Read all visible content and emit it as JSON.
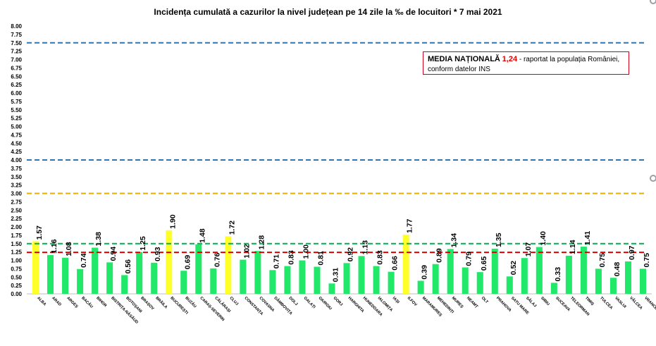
{
  "chart_data": {
    "type": "bar",
    "title": "Incidența cumulată a cazurilor la nivel județean pe 14 zile la ‰ de locuitori *   7 mai 2021",
    "xlabel": "",
    "ylabel": "",
    "ylim": [
      0,
      8
    ],
    "y_ticks": [
      "0.00",
      "0.25",
      "0.50",
      "0.75",
      "1.00",
      "1.25",
      "1.50",
      "1.75",
      "2.00",
      "2.25",
      "2.50",
      "2.75",
      "3.00",
      "3.25",
      "3.50",
      "3.75",
      "4.00",
      "4.25",
      "4.50",
      "4.75",
      "5.00",
      "5.25",
      "5.50",
      "5.75",
      "6.00",
      "6.25",
      "6.50",
      "6.75",
      "7.00",
      "7.25",
      "7.50",
      "7.75",
      "8.00"
    ],
    "categories": [
      "ALBA",
      "ARAD",
      "ARGEȘ",
      "BACĂU",
      "BIHOR",
      "BISTRIȚA-NĂSĂUD",
      "BOTOȘANI",
      "BRAȘOV",
      "BRĂILA",
      "BUCUREȘTI",
      "BUZĂU",
      "CARAȘ-SEVERIN",
      "CĂLĂRAȘI",
      "CLUJ",
      "CONSTANȚA",
      "COVASNA",
      "DÂMBOVIȚA",
      "DOLJ",
      "GALAȚI",
      "GIURGIU",
      "GORJ",
      "HARGHITA",
      "HUNEDOARA",
      "IALOMIȚA",
      "IAȘI",
      "ILFOV",
      "MARAMUREȘ",
      "MEHEDINȚI",
      "MUREȘ",
      "NEAMȚ",
      "OLT",
      "PRAHOVA",
      "SATU MARE",
      "SĂLAJ",
      "SIBIU",
      "SUCEAVA",
      "TELEORMAN",
      "TIMIȘ",
      "TULCEA",
      "VASLUI",
      "VÂLCEA",
      "VRANCEA"
    ],
    "values": [
      1.57,
      1.16,
      1.08,
      0.74,
      1.38,
      0.94,
      0.56,
      1.25,
      0.93,
      1.9,
      0.69,
      1.48,
      0.76,
      1.72,
      1.02,
      1.28,
      0.71,
      0.83,
      1.0,
      0.81,
      0.31,
      0.92,
      1.13,
      0.83,
      0.66,
      1.77,
      0.39,
      0.89,
      1.34,
      0.79,
      0.65,
      1.35,
      0.52,
      1.07,
      1.4,
      0.33,
      1.14,
      1.41,
      0.75,
      0.48,
      0.97,
      0.75
    ],
    "value_labels": [
      "1.57",
      "1.16",
      "1.08",
      "0.74",
      "1.38",
      "0.94",
      "0.56",
      "1.25",
      "0.93",
      "1.90",
      "0.69",
      "1.48",
      "0.76",
      "1.72",
      "1.02",
      "1.28",
      "0.71",
      "0.83",
      "1.00",
      "0.81",
      "0.31",
      "0.92",
      "1.13",
      "0.83",
      "0.66",
      "1.77",
      "0.39",
      "0.89",
      "1.34",
      "0.79",
      "0.65",
      "1.35",
      "0.52",
      "1.07",
      "1.40",
      "0.33",
      "1.14",
      "1.41",
      "0.75",
      "0.48",
      "0.97",
      "0.75"
    ],
    "highlighted": [
      "ALBA",
      "BUCUREȘTI",
      "CLUJ",
      "ILFOV"
    ],
    "reference_lines": [
      {
        "value": 7.5,
        "color": "#2e75b6"
      },
      {
        "value": 4.0,
        "color": "#2e75b6"
      },
      {
        "value": 3.0,
        "color": "#e2b100"
      },
      {
        "value": 1.5,
        "color": "#00b050"
      },
      {
        "value": 1.24,
        "color": "#e00000"
      }
    ],
    "colors": {
      "bar": "#22e86a",
      "highlight": "#ffff29",
      "grid": "none"
    },
    "annotation": {
      "label": "MEDIA NAȚIONALĂ",
      "value": "1,24",
      "text_line1": " - raportat la populația României,",
      "text_line2": "conform datelor INS"
    }
  }
}
